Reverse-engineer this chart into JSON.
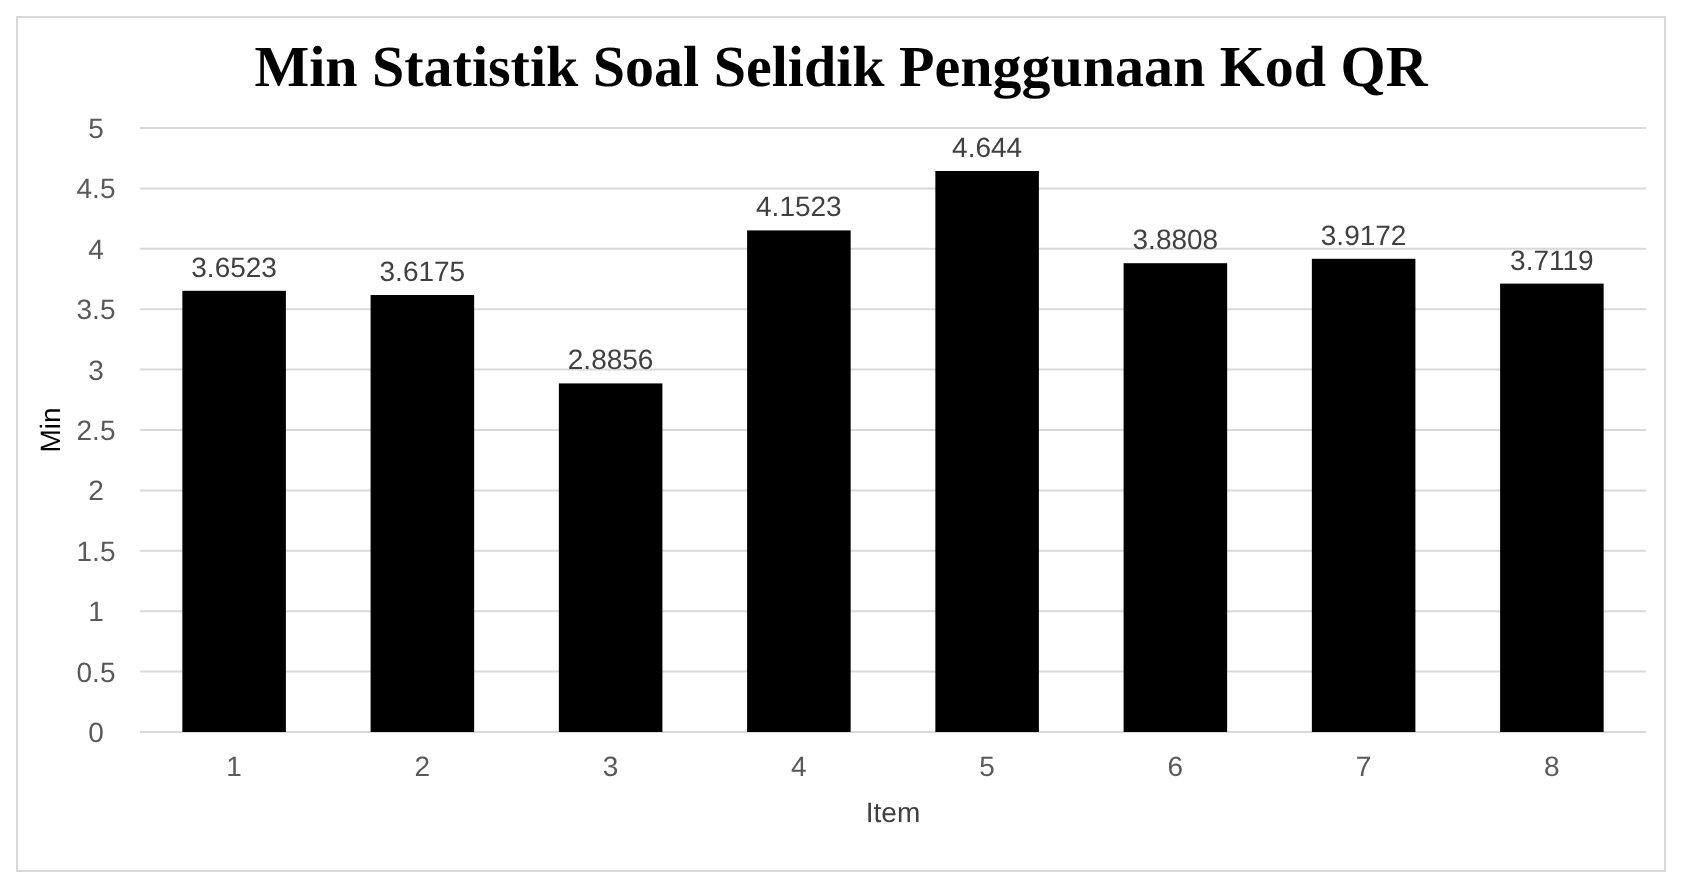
{
  "chart_data": {
    "type": "bar",
    "title": "Min Statistik Soal Selidik Penggunaan Kod QR",
    "xlabel": "Item",
    "ylabel": "Min",
    "categories": [
      "1",
      "2",
      "3",
      "4",
      "5",
      "6",
      "7",
      "8"
    ],
    "values": [
      3.6523,
      3.6175,
      2.8856,
      4.1523,
      4.644,
      3.8808,
      3.9172,
      3.7119
    ],
    "color": "#000000",
    "ylim": [
      0,
      5
    ],
    "yticks": [
      0,
      0.5,
      1,
      1.5,
      2,
      2.5,
      3,
      3.5,
      4,
      4.5,
      5
    ],
    "grid": "y",
    "data_labels": true
  }
}
